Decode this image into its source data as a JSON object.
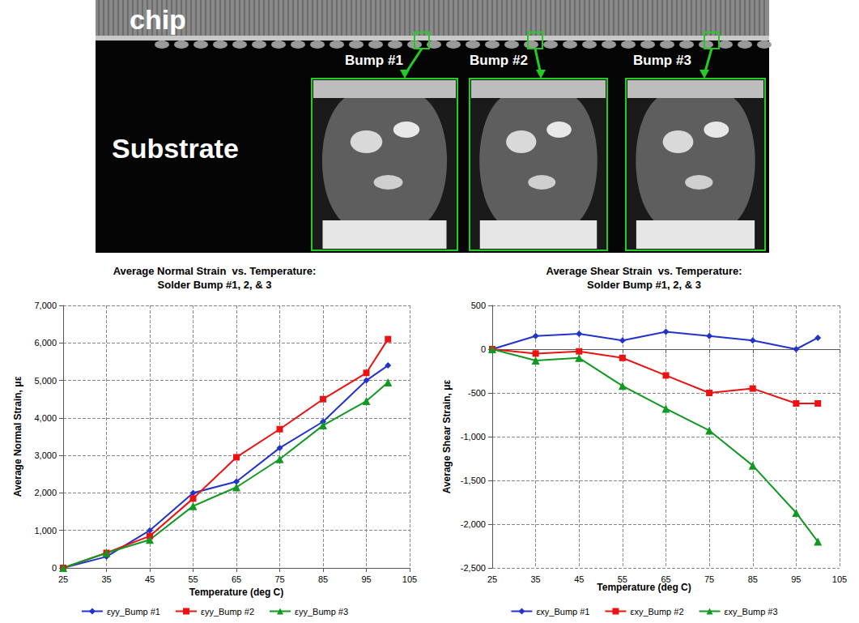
{
  "micrograph": {
    "chip_label": "chip",
    "substrate_label": "Substrate",
    "bumps": [
      "Bump #1",
      "Bump #2",
      "Bump #3"
    ]
  },
  "chart_data": [
    {
      "type": "line",
      "title": "Average Normal Strain  vs. Temperature:\nSolder Bump #1, 2, & 3",
      "x_label": "Temperature (deg C)",
      "y_label": "Average Normal Strain, με",
      "x": [
        25,
        35,
        45,
        55,
        65,
        75,
        85,
        95,
        100
      ],
      "series": [
        {
          "name": "εyy_Bump #1",
          "color": "#2233cc",
          "marker": "diamond",
          "values": [
            0,
            300,
            1000,
            2000,
            2300,
            3200,
            3900,
            5000,
            5400
          ]
        },
        {
          "name": "εyy_Bump #2",
          "color": "#ee1111",
          "marker": "square",
          "values": [
            0,
            400,
            850,
            1850,
            2950,
            3700,
            4500,
            5200,
            6100
          ]
        },
        {
          "name": "εyy_Bump #3",
          "color": "#119922",
          "marker": "triangle",
          "values": [
            0,
            400,
            750,
            1650,
            2150,
            2900,
            3800,
            4450,
            4950
          ]
        }
      ],
      "xlim": [
        25,
        105
      ],
      "xticks": [
        25,
        35,
        45,
        55,
        65,
        75,
        85,
        95,
        105
      ],
      "ylim": [
        0,
        7000
      ],
      "yticks": [
        0,
        {
          "value": 1000,
          "label": "1,000"
        },
        {
          "value": 2000,
          "label": "2,000"
        },
        {
          "value": 3000,
          "label": "3,000"
        },
        {
          "value": 4000,
          "label": "4,000"
        },
        {
          "value": 5000,
          "label": "5,000"
        },
        {
          "value": 6000,
          "label": "6,000"
        },
        {
          "value": 7000,
          "label": "7,000"
        }
      ],
      "grid": true,
      "legend": "bottom"
    },
    {
      "type": "line",
      "title": "Average Shear Strain  vs. Temperature:\nSolder Bump #1, 2, & 3",
      "x_label": "Temperature (deg C)",
      "y_label": "Average Shear Strain, με",
      "x": [
        25,
        35,
        45,
        55,
        65,
        75,
        85,
        95,
        100
      ],
      "series": [
        {
          "name": "εxy_Bump #1",
          "color": "#2233cc",
          "marker": "diamond",
          "values": [
            0,
            150,
            175,
            100,
            200,
            150,
            100,
            0,
            130
          ]
        },
        {
          "name": "εxy_Bump #2",
          "color": "#ee1111",
          "marker": "square",
          "values": [
            0,
            -50,
            -25,
            -100,
            -300,
            -500,
            -450,
            -620,
            -620
          ]
        },
        {
          "name": "εxy_Bump #3",
          "color": "#119922",
          "marker": "triangle",
          "values": [
            0,
            -130,
            -100,
            -420,
            -680,
            -930,
            -1330,
            -1870,
            -2200
          ]
        }
      ],
      "xlim": [
        25,
        105
      ],
      "xticks": [
        25,
        35,
        45,
        55,
        65,
        75,
        85,
        95,
        105
      ],
      "ylim": [
        -2500,
        500
      ],
      "yticks": [
        {
          "value": -2500,
          "label": "-2,500"
        },
        {
          "value": -2000,
          "label": "-2,000"
        },
        {
          "value": -1500,
          "label": "-1,500"
        },
        {
          "value": -1000,
          "label": "-1,000"
        },
        -500,
        0,
        500
      ],
      "grid": true,
      "legend": "bottom"
    }
  ]
}
